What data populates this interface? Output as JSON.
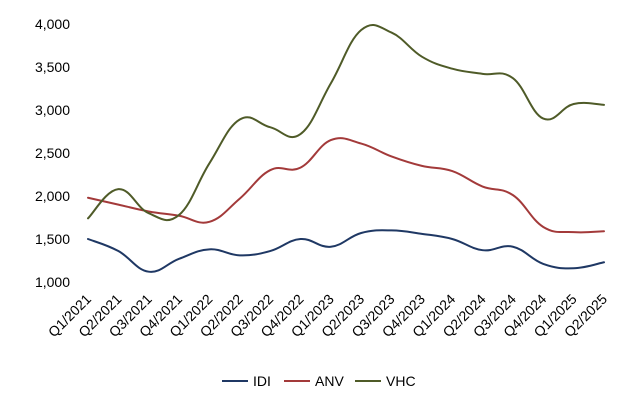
{
  "chart_data": {
    "type": "line",
    "title": "",
    "xlabel": "",
    "ylabel": "",
    "categories": [
      "Q1/2021",
      "Q2/2021",
      "Q3/2021",
      "Q4/2021",
      "Q1/2022",
      "Q2/2022",
      "Q3/2022",
      "Q4/2022",
      "Q1/2023",
      "Q2/2023",
      "Q3/2023",
      "Q4/2023",
      "Q1/2024",
      "Q2/2024",
      "Q3/2024",
      "Q4/2024",
      "Q1/2025",
      "Q2/2025"
    ],
    "ylim": [
      1000,
      4000
    ],
    "yticks": [
      1000,
      1500,
      2000,
      2500,
      3000,
      3500,
      4000
    ],
    "ytick_labels": [
      "1,000",
      "1,500",
      "2,000",
      "2,500",
      "3,000",
      "3,500",
      "4,000"
    ],
    "grid": false,
    "legend_position": "bottom",
    "series": [
      {
        "name": "IDI",
        "color": "#1f3864",
        "values": [
          1500,
          1360,
          1120,
          1270,
          1380,
          1310,
          1360,
          1500,
          1410,
          1570,
          1600,
          1560,
          1500,
          1370,
          1410,
          1210,
          1160,
          1230
        ]
      },
      {
        "name": "ANV",
        "color": "#a33a3a",
        "values": [
          1980,
          1900,
          1820,
          1770,
          1700,
          1970,
          2300,
          2330,
          2650,
          2610,
          2460,
          2350,
          2290,
          2110,
          2010,
          1640,
          1580,
          1590
        ]
      },
      {
        "name": "VHC",
        "color": "#4f5b28",
        "values": [
          1740,
          2080,
          1800,
          1780,
          2380,
          2890,
          2800,
          2720,
          3310,
          3930,
          3900,
          3620,
          3480,
          3420,
          3370,
          2900,
          3070,
          3060
        ]
      }
    ]
  }
}
